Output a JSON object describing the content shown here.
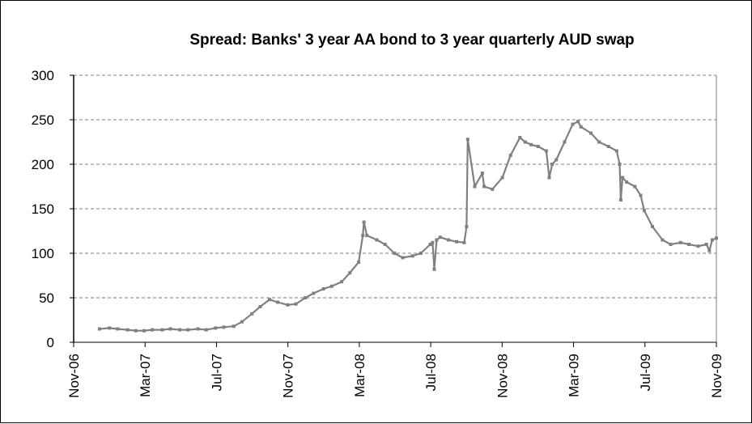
{
  "chart_data": {
    "type": "line",
    "title": "Spread: Banks' 3 year AA bond to 3 year quarterly AUD swap",
    "xlabel": "",
    "ylabel": "",
    "ylim": [
      0,
      300
    ],
    "yticks": [
      "0",
      "50",
      "100",
      "150",
      "200",
      "250",
      "300"
    ],
    "xlim": [
      "2006-11-01",
      "2009-11-01"
    ],
    "xticks": [
      "Nov-06",
      "Mar-07",
      "Jul-07",
      "Nov-07",
      "Mar-08",
      "Jul-08",
      "Nov-08",
      "Mar-09",
      "Jul-09",
      "Nov-09"
    ],
    "grid": "horizontal dashed",
    "legend": "none",
    "line_color": "#808080",
    "series": [
      {
        "x": [
          "2006-12-15",
          "2007-01-01",
          "2007-01-15",
          "2007-02-01",
          "2007-02-15",
          "2007-03-01",
          "2007-03-15",
          "2007-04-01",
          "2007-04-15",
          "2007-05-01",
          "2007-05-15",
          "2007-06-01",
          "2007-06-15",
          "2007-07-01",
          "2007-07-15",
          "2007-08-01",
          "2007-08-15",
          "2007-09-01",
          "2007-09-15",
          "2007-10-01",
          "2007-10-15",
          "2007-11-01",
          "2007-11-15",
          "2007-12-01",
          "2007-12-15",
          "2008-01-01",
          "2008-01-15",
          "2008-02-01",
          "2008-02-15",
          "2008-03-01",
          "2008-03-08",
          "2008-03-10",
          "2008-03-15",
          "2008-04-01",
          "2008-04-15",
          "2008-05-01",
          "2008-05-15",
          "2008-06-01",
          "2008-06-15",
          "2008-07-01",
          "2008-07-05",
          "2008-07-08",
          "2008-07-12",
          "2008-07-18",
          "2008-08-01",
          "2008-08-15",
          "2008-08-28",
          "2008-09-01",
          "2008-09-03",
          "2008-09-15",
          "2008-09-28",
          "2008-10-01",
          "2008-10-15",
          "2008-11-01",
          "2008-11-15",
          "2008-12-01",
          "2008-12-10",
          "2008-12-20",
          "2009-01-01",
          "2009-01-15",
          "2009-01-20",
          "2009-01-25",
          "2009-02-01",
          "2009-02-15",
          "2009-03-01",
          "2009-03-10",
          "2009-03-15",
          "2009-04-01",
          "2009-04-15",
          "2009-05-01",
          "2009-05-15",
          "2009-05-20",
          "2009-05-22",
          "2009-05-25",
          "2009-06-01",
          "2009-06-15",
          "2009-06-25",
          "2009-07-01",
          "2009-07-15",
          "2009-08-01",
          "2009-08-15",
          "2009-09-01",
          "2009-09-15",
          "2009-10-01",
          "2009-10-15",
          "2009-10-20",
          "2009-10-25",
          "2009-11-01"
        ],
        "values": [
          15,
          16,
          15,
          14,
          13,
          13,
          14,
          14,
          15,
          14,
          14,
          15,
          14,
          16,
          17,
          18,
          23,
          32,
          40,
          48,
          45,
          42,
          43,
          50,
          55,
          60,
          63,
          68,
          78,
          90,
          120,
          135,
          120,
          115,
          110,
          100,
          95,
          97,
          100,
          110,
          112,
          82,
          115,
          118,
          115,
          113,
          112,
          130,
          228,
          175,
          190,
          175,
          172,
          185,
          210,
          230,
          225,
          222,
          220,
          215,
          185,
          200,
          205,
          225,
          245,
          248,
          242,
          235,
          225,
          220,
          215,
          200,
          160,
          185,
          180,
          175,
          165,
          148,
          130,
          115,
          110,
          112,
          110,
          108,
          110,
          103,
          115,
          117
        ]
      }
    ]
  }
}
